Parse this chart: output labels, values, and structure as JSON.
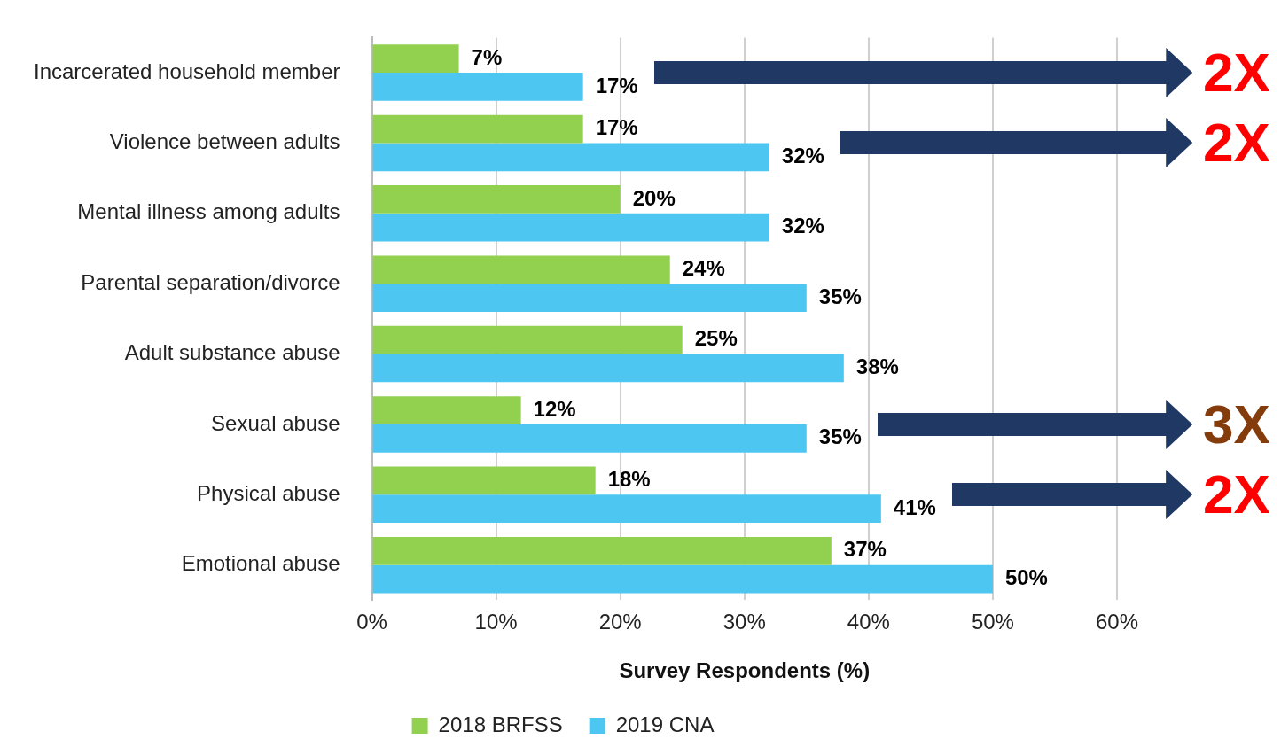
{
  "chart_data": {
    "type": "bar",
    "orientation": "horizontal",
    "categories": [
      "Incarcerated household member",
      "Violence between adults",
      "Mental illness among adults",
      "Parental separation/divorce",
      "Adult substance abuse",
      "Sexual abuse",
      "Physical abuse",
      "Emotional abuse"
    ],
    "series": [
      {
        "name": "2018 BRFSS",
        "color": "#92d050",
        "values": [
          7,
          17,
          20,
          24,
          25,
          12,
          18,
          37
        ],
        "value_labels": [
          "7%",
          "17%",
          "20%",
          "24%",
          "25%",
          "12%",
          "18%",
          "37%"
        ]
      },
      {
        "name": "2019 CNA",
        "color": "#4dc6f2",
        "values": [
          17,
          32,
          32,
          35,
          38,
          35,
          41,
          50
        ],
        "value_labels": [
          "17%",
          "32%",
          "32%",
          "35%",
          "38%",
          "35%",
          "41%",
          "50%"
        ]
      }
    ],
    "xlim": [
      0,
      60
    ],
    "xticks": [
      {
        "value": 0,
        "label": "0%"
      },
      {
        "value": 10,
        "label": "10%"
      },
      {
        "value": 20,
        "label": "20%"
      },
      {
        "value": 30,
        "label": "30%"
      },
      {
        "value": 40,
        "label": "40%"
      },
      {
        "value": 50,
        "label": "50%"
      },
      {
        "value": 60,
        "label": "60%"
      }
    ],
    "xlabel": "Survey Respondents (%)",
    "grid": "x",
    "legend": "bottom",
    "annotations": [
      "2X",
      "2X",
      "3X",
      "2X"
    ]
  }
}
